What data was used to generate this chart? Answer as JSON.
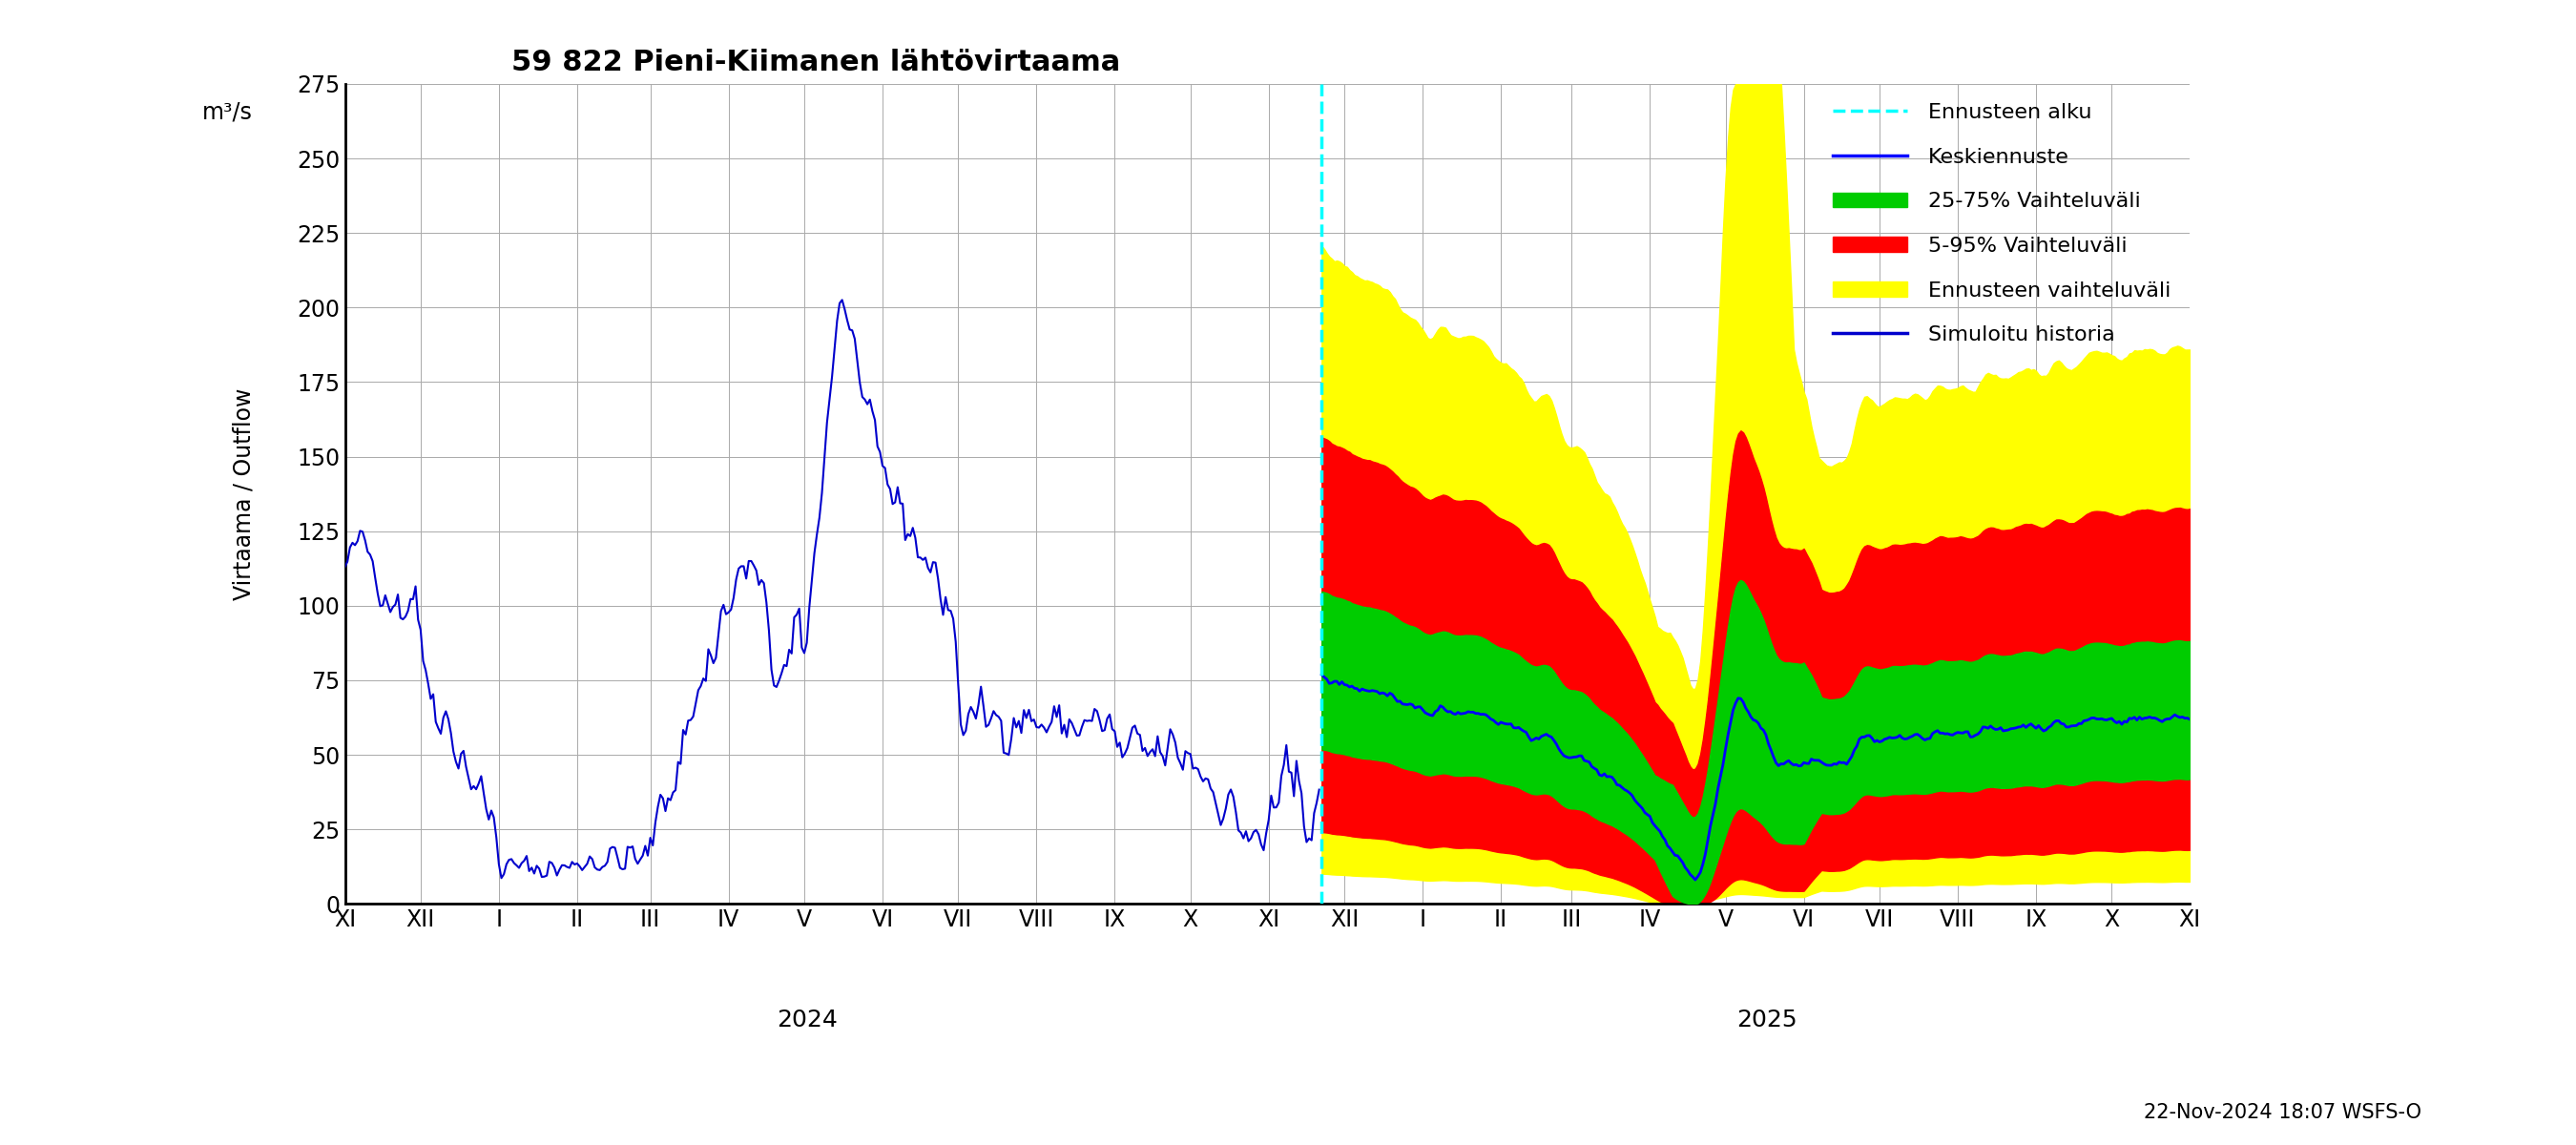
{
  "title": "59 822 Pieni-Kiimanen lähtövirtaama",
  "ylabel_top": "m³/s",
  "ylabel_main": "Virtaama / Outflow",
  "footer": "22-Nov-2024 18:07 WSFS-O",
  "ylim": [
    0,
    275
  ],
  "yticks": [
    0,
    25,
    50,
    75,
    100,
    125,
    150,
    175,
    200,
    225,
    250,
    275
  ],
  "background_color": "#ffffff",
  "grid_color": "#aaaaaa",
  "history_color": "#0000cc",
  "mean_color": "#0000ff",
  "p25_75_color": "#00cc00",
  "p5_95_color": "#ff0000",
  "ensemble_color": "#ffff00",
  "forecast_start_color": "#00ffff",
  "legend_entries": [
    "Ennusteen alku",
    "Keskiennuste",
    "25-75% Vaihteluväli",
    "5-95% Vaihteluväli",
    "Ennusteen vaihteluväli",
    "Simuloitu historia"
  ]
}
